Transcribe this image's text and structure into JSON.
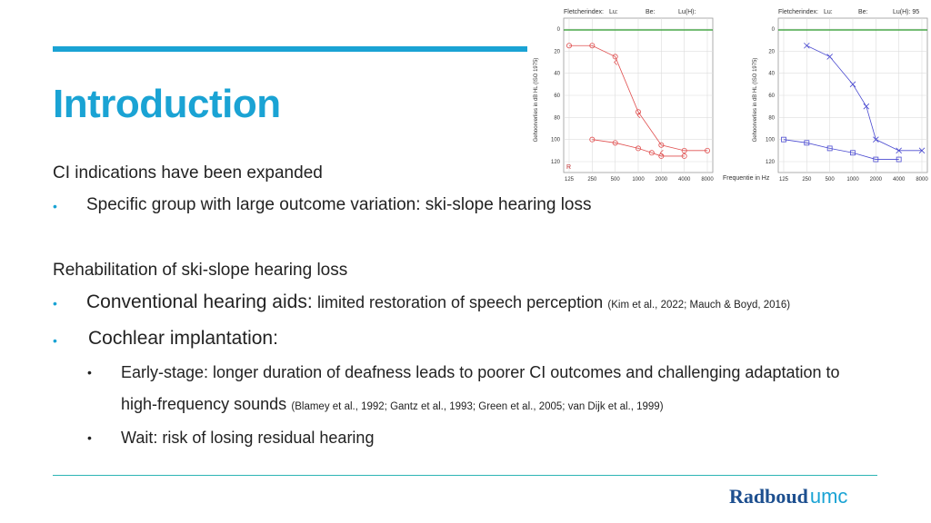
{
  "slide": {
    "title": "Introduction",
    "section1_heading": "CI indications have been expanded",
    "section1_bullet": "Specific group with large outcome variation: ski-slope hearing loss",
    "section2_heading": "Rehabilitation of ski-slope hearing loss",
    "bullet_aids_label": "Conventional hearing aids:",
    "bullet_aids_text": "limited restoration of speech perception",
    "bullet_aids_cite": "(Kim et al., 2022; Mauch & Boyd, 2016)",
    "bullet_ci_label": "Cochlear implantation:",
    "sub1_text": "Early-stage: longer duration of deafness leads to poorer CI outcomes and challenging adaptation to",
    "sub1_cont": "high-frequency sounds",
    "sub1_cite": "(Blamey et al., 1992; Gantz et al., 1993; Green et al., 2005; van Dijk et al., 1999)",
    "sub2_text": "Wait: risk of losing residual hearing",
    "bullet_symbol": "•",
    "logo_main": "Radboud",
    "logo_suffix": "umc"
  },
  "audiogram_left": {
    "header": [
      "Fletcherindex:",
      "Lu:",
      "Be:",
      "Lu(H):"
    ],
    "ylabel": "Gehoorverlies in dB HL (ISO 1975)",
    "yticks": [
      "0",
      "20",
      "40",
      "60",
      "80",
      "100",
      "120"
    ],
    "xticks": [
      "125",
      "250",
      "500",
      "1000",
      "2000",
      "4000",
      "8000"
    ],
    "corner": "R",
    "colors": {
      "marks": "#e05050",
      "ref_line": "#2a9a2a"
    }
  },
  "audiogram_right": {
    "header": [
      "Fletcherindex:",
      "Lu:",
      "Be:",
      "Lu(H): 95"
    ],
    "ylabel": "Gehoorverlies in dB HL (ISO 1975)",
    "yticks": [
      "0",
      "20",
      "40",
      "60",
      "80",
      "100",
      "120"
    ],
    "xticks": [
      "125",
      "250",
      "500",
      "1000",
      "2000",
      "4000",
      "8000"
    ],
    "xlabel": "Frequentie in Hz",
    "colors": {
      "marks": "#4a4ad0",
      "ref_line": "#2a9a2a"
    }
  },
  "chart_data": [
    {
      "type": "line",
      "title": "",
      "xlabel": "",
      "ylabel": "Gehoorverlies in dB HL (ISO 1975)",
      "x": [
        125,
        250,
        500,
        1000,
        2000,
        4000,
        8000
      ],
      "ylim": [
        120,
        0
      ],
      "series": [
        {
          "marker": "circle",
          "x": [
            125,
            250,
            500,
            1000,
            2000,
            4000,
            8000
          ],
          "values": [
            15,
            15,
            25,
            75,
            105,
            110,
            110
          ]
        },
        {
          "marker": "circle",
          "x": [
            250,
            500,
            1000,
            1500,
            2000,
            4000
          ],
          "values": [
            100,
            103,
            108,
            112,
            115,
            115
          ]
        },
        {
          "marker": "bracket",
          "x": [
            500,
            1000,
            2000
          ],
          "values": [
            30,
            78,
            112
          ]
        }
      ]
    },
    {
      "type": "line",
      "title": "",
      "xlabel": "Frequentie in Hz",
      "ylabel": "Gehoorverlies in dB HL (ISO 1975)",
      "x": [
        125,
        250,
        500,
        1000,
        2000,
        4000,
        8000
      ],
      "ylim": [
        120,
        0
      ],
      "series": [
        {
          "marker": "cross",
          "x": [
            250,
            500,
            1000,
            1500,
            2000,
            4000,
            8000
          ],
          "values": [
            15,
            25,
            50,
            70,
            100,
            110,
            110
          ]
        },
        {
          "marker": "square",
          "x": [
            125,
            250,
            500,
            1000,
            2000,
            4000
          ],
          "values": [
            100,
            103,
            108,
            112,
            118,
            118
          ]
        }
      ]
    }
  ]
}
